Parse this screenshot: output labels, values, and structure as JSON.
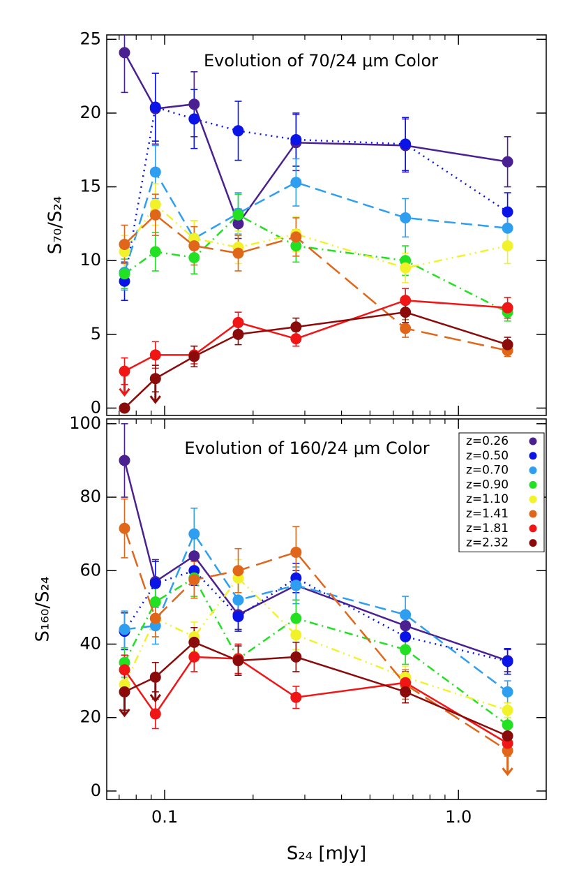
{
  "chart_data": [
    {
      "type": "line",
      "title": "Evolution of 70/24 μm Color",
      "y_label": "S₇₀/S₂₄",
      "xlog": true,
      "xlim": [
        0.0635,
        1.99
      ],
      "xticks": [
        0.1,
        1
      ],
      "xtick_labels": false,
      "ylim": [
        -0.5,
        25.3
      ],
      "yticks": [
        0,
        5,
        10,
        15,
        20,
        25
      ],
      "legend": false,
      "x": [
        0.073,
        0.093,
        0.126,
        0.178,
        0.28,
        0.66,
        1.47
      ],
      "series": [
        {
          "color": "#4b2090",
          "dash": "solid",
          "values": [
            24.1,
            20.3,
            20.6,
            12.5,
            18.0,
            17.8,
            16.7
          ],
          "errors": [
            2.7,
            2.4,
            2.2,
            1.0,
            1.9,
            1.8,
            1.7
          ]
        },
        {
          "color": "#0a14e6",
          "dash": "dotted",
          "values": [
            8.6,
            20.4,
            19.6,
            18.8,
            18.2,
            17.9,
            13.3
          ],
          "errors": [
            1.3,
            2.3,
            2.0,
            2.0,
            1.8,
            1.8,
            1.3
          ]
        },
        {
          "color": "#2e9ef0",
          "dash": "dashed",
          "values": [
            9.2,
            16.0,
            11.5,
            13.2,
            15.3,
            12.9,
            12.2
          ],
          "errors": [
            1.2,
            1.8,
            1.2,
            1.4,
            1.6,
            1.3,
            1.2
          ]
        },
        {
          "color": "#22e022",
          "dash": "dashdot",
          "values": [
            9.1,
            10.6,
            10.2,
            13.1,
            11.0,
            10.0,
            6.5
          ],
          "errors": [
            1.0,
            1.3,
            1.1,
            1.4,
            1.1,
            1.0,
            0.6
          ]
        },
        {
          "color": "#f2f22a",
          "dash": "dashdotdot",
          "values": [
            10.6,
            13.8,
            11.5,
            10.9,
            11.8,
            9.5,
            11.0
          ],
          "errors": [
            1.1,
            1.4,
            1.2,
            1.1,
            1.2,
            1.0,
            1.2
          ]
        },
        {
          "color": "#e0661a",
          "dash": "longdash",
          "values": [
            11.1,
            13.1,
            11.0,
            10.5,
            11.6,
            5.4,
            3.9
          ],
          "errors": [
            1.3,
            1.4,
            1.3,
            1.2,
            1.3,
            0.6,
            0.4
          ]
        },
        {
          "color": "#f01616",
          "dash": "solid",
          "values": [
            2.5,
            3.6,
            3.6,
            5.8,
            4.7,
            7.3,
            6.8
          ],
          "errors": [
            0.9,
            0.9,
            0.6,
            0.7,
            0.5,
            0.8,
            0.7
          ],
          "upper_limits": [
            true,
            false,
            false,
            false,
            false,
            false,
            false
          ]
        },
        {
          "color": "#8b0a0a",
          "dash": "solid",
          "values": [
            0.0,
            2.0,
            3.5,
            5.0,
            5.5,
            6.5,
            4.3
          ],
          "errors": [
            0,
            0.9,
            0.7,
            0.7,
            0.6,
            0.7,
            0.5
          ],
          "upper_limits": [
            false,
            true,
            false,
            false,
            false,
            false,
            false
          ]
        }
      ]
    },
    {
      "type": "line",
      "title": "Evolution of 160/24 μm Color",
      "y_label": "S₁₆₀/S₂₄",
      "x_label": "S₂₄ [mJy]",
      "xlog": true,
      "xlim": [
        0.0635,
        1.99
      ],
      "xticks": [
        0.1,
        {
          "value": 1,
          "label": "1.0"
        }
      ],
      "xtick_labels": true,
      "ylim": [
        -2.3,
        101.3
      ],
      "yticks": [
        0,
        20,
        40,
        60,
        80,
        100
      ],
      "legend": true,
      "x": [
        0.073,
        0.093,
        0.126,
        0.178,
        0.28,
        0.66,
        1.47
      ],
      "series": [
        {
          "name": "z=0.26",
          "color": "#4b2090",
          "dash": "solid",
          "values": [
            90.0,
            57,
            64,
            48,
            56,
            45,
            35.5
          ],
          "errors": [
            10,
            6,
            5,
            4,
            4,
            3,
            3
          ]
        },
        {
          "name": "z=0.50",
          "color": "#0a14e6",
          "dash": "dotted",
          "values": [
            43.5,
            56.5,
            60,
            47.5,
            58,
            42,
            35.3
          ],
          "errors": [
            5,
            6,
            4,
            4,
            4,
            3,
            3.5
          ]
        },
        {
          "name": "z=0.70",
          "color": "#2e9ef0",
          "dash": "dashed",
          "values": [
            44,
            45,
            70,
            52,
            56,
            48,
            27
          ],
          "errors": [
            5,
            5,
            7,
            5,
            5,
            5,
            3
          ]
        },
        {
          "name": "z=0.90",
          "color": "#22e022",
          "dash": "dashdot",
          "values": [
            35,
            51.5,
            58,
            36,
            47,
            38.5,
            18
          ],
          "errors": [
            4,
            5,
            5,
            4,
            5,
            4,
            2
          ]
        },
        {
          "name": "z=1.10",
          "color": "#f2f22a",
          "dash": "dashdotdot",
          "values": [
            29,
            47,
            42,
            58,
            42.5,
            31,
            22
          ],
          "errors": [
            3,
            5,
            4,
            5,
            4,
            3,
            2
          ]
        },
        {
          "name": "z=1.41",
          "color": "#e0661a",
          "dash": "longdash",
          "values": [
            71.5,
            47,
            57.5,
            60,
            65,
            29,
            11
          ],
          "errors": [
            8,
            5,
            5,
            6,
            7,
            4,
            1.5
          ],
          "upper_limits": [
            false,
            false,
            false,
            false,
            false,
            false,
            true
          ]
        },
        {
          "name": "z=1.81",
          "color": "#f01616",
          "dash": "solid",
          "values": [
            33,
            21,
            36.5,
            36,
            25.5,
            29.5,
            13
          ],
          "errors": [
            4,
            4,
            4,
            4,
            3,
            3,
            1.5
          ]
        },
        {
          "name": "z=2.32",
          "color": "#8b0a0a",
          "dash": "solid",
          "values": [
            27,
            31,
            40.5,
            35.5,
            36.5,
            27,
            15
          ],
          "errors": [
            5,
            4,
            4,
            4,
            4,
            3,
            2
          ],
          "upper_limits": [
            true,
            true,
            false,
            false,
            false,
            false,
            false
          ]
        }
      ]
    }
  ]
}
